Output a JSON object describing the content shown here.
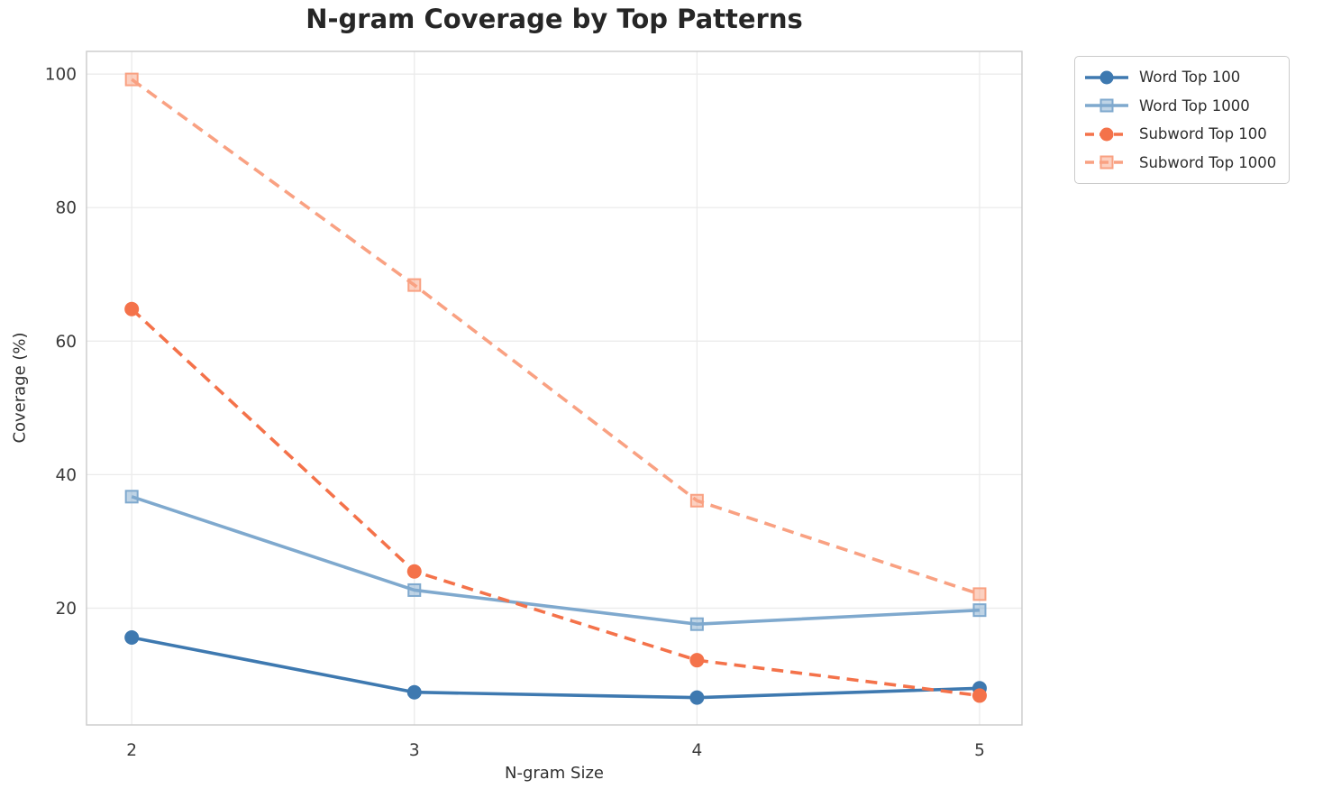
{
  "page": {
    "background": "#FFFFFF"
  },
  "chart_data": {
    "type": "line",
    "title": "N-gram Coverage by Top Patterns",
    "xlabel": "N-gram Size",
    "ylabel": "Coverage (%)",
    "x": [
      2,
      3,
      4,
      5
    ],
    "xticks": [
      "2",
      "3",
      "4",
      "5"
    ],
    "yticks": [
      20,
      40,
      60,
      80,
      100
    ],
    "xlim": [
      1.84,
      5.15
    ],
    "ylim": [
      2.5,
      103.4
    ],
    "grid": true,
    "legend_position": "outside-upper-right",
    "series": [
      {
        "name": "Word Top 100",
        "values": [
          15.6,
          7.4,
          6.6,
          8.0
        ],
        "color": "#3E79B0",
        "marker": "circle",
        "dash": "solid"
      },
      {
        "name": "Word Top 1000",
        "values": [
          36.7,
          22.7,
          17.6,
          19.7
        ],
        "color": "#7FA9CE",
        "marker": "square",
        "dash": "solid"
      },
      {
        "name": "Subword Top 100",
        "values": [
          64.8,
          25.5,
          12.2,
          6.9
        ],
        "color": "#F4724A",
        "marker": "circle",
        "dash": "dashed"
      },
      {
        "name": "Subword Top 1000",
        "values": [
          99.2,
          68.4,
          36.1,
          22.1
        ],
        "color": "#F9A182",
        "marker": "square",
        "dash": "dashed"
      }
    ],
    "style": {
      "grid_color": "#EBEBEB",
      "spine_color": "#CBCBCB",
      "tick_label_color": "#3A3A3A",
      "title_color": "#262626",
      "line_width": 3.6,
      "dash_pattern": "13 8"
    }
  }
}
